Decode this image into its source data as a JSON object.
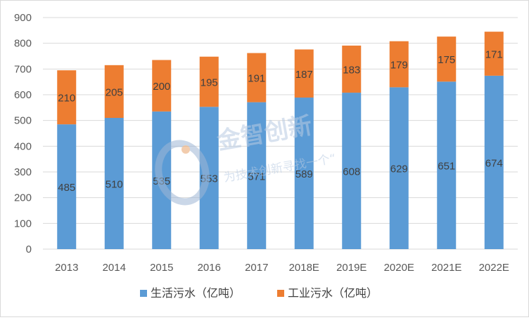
{
  "chart_data": {
    "type": "bar",
    "stacked": true,
    "categories": [
      "2013",
      "2014",
      "2015",
      "2016",
      "2017",
      "2018E",
      "2019E",
      "2020E",
      "2021E",
      "2022E"
    ],
    "series": [
      {
        "name": "生活污水（亿吨）",
        "color": "#5b9bd5",
        "values": [
          485,
          510,
          535,
          553,
          571,
          589,
          608,
          629,
          651,
          674
        ]
      },
      {
        "name": "工业污水（亿吨）",
        "color": "#ed7d31",
        "values": [
          210,
          205,
          200,
          195,
          191,
          187,
          183,
          179,
          175,
          171
        ]
      }
    ],
    "yticks": [
      "0",
      "100",
      "200",
      "300",
      "400",
      "500",
      "600",
      "700",
      "800",
      "900"
    ],
    "ylim": [
      0,
      900
    ],
    "grid": true,
    "legend_position": "bottom"
  },
  "watermark": {
    "title": "金智创新",
    "tagline": "为技术创新寻找一个“"
  }
}
